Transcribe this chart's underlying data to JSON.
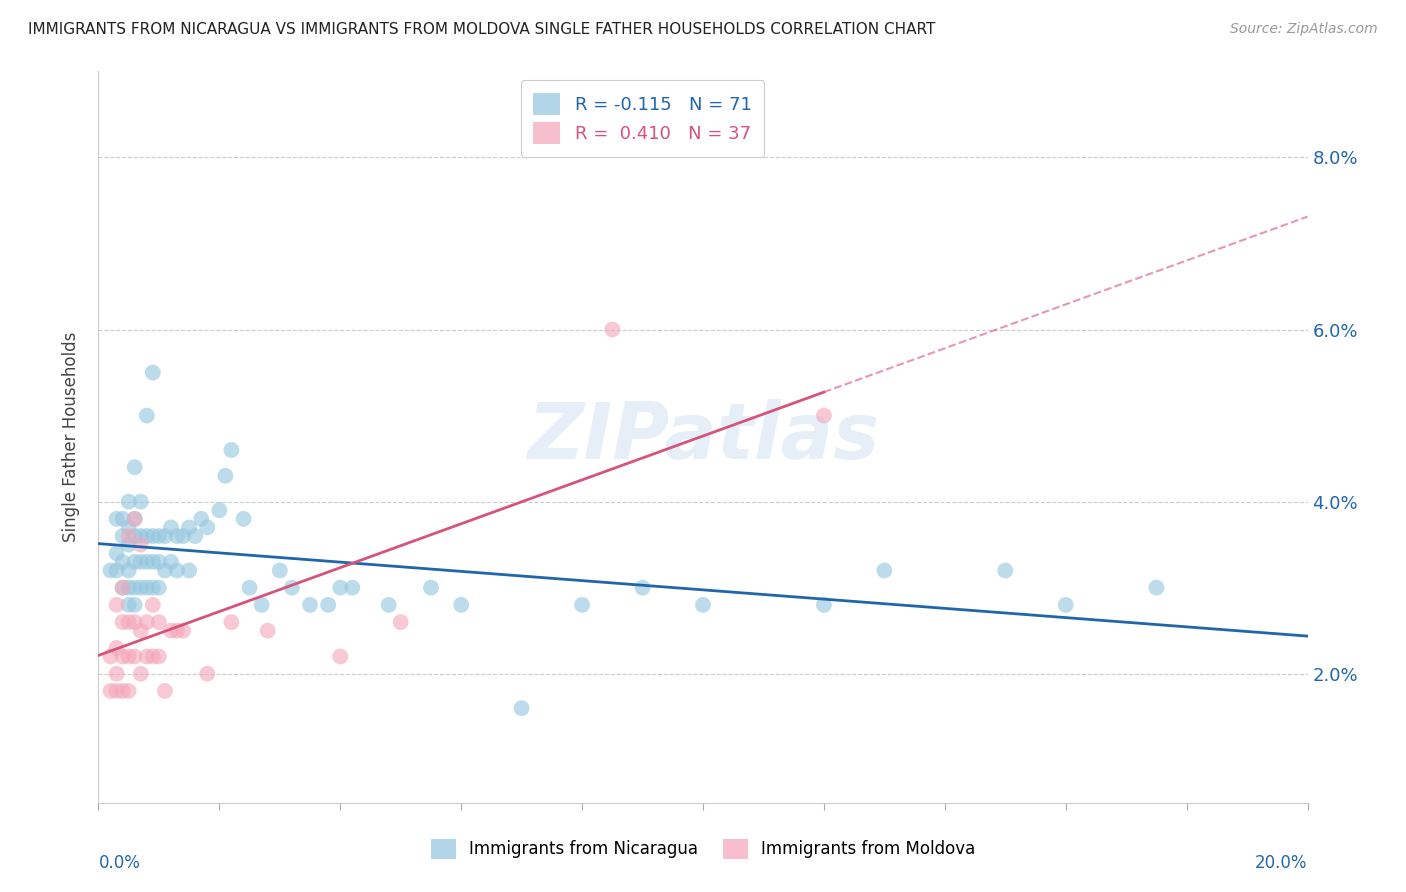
{
  "title": "IMMIGRANTS FROM NICARAGUA VS IMMIGRANTS FROM MOLDOVA SINGLE FATHER HOUSEHOLDS CORRELATION CHART",
  "source": "Source: ZipAtlas.com",
  "ylabel": "Single Father Households",
  "ytick_labels": [
    "2.0%",
    "4.0%",
    "6.0%",
    "8.0%"
  ],
  "ytick_values": [
    0.02,
    0.04,
    0.06,
    0.08
  ],
  "xlim": [
    0.0,
    0.2
  ],
  "ylim": [
    0.005,
    0.09
  ],
  "nicaragua_color": "#92c5de",
  "moldova_color": "#f4a5b8",
  "nicaragua_line_color": "#2166ac",
  "moldova_line_color": "#d6537a",
  "watermark": "ZIPatlas",
  "nicaragua_R": -0.115,
  "nicaragua_N": 71,
  "moldova_R": 0.41,
  "moldova_N": 37,
  "background_color": "#ffffff",
  "grid_color": "#cccccc",
  "nicaragua_x": [
    0.002,
    0.003,
    0.003,
    0.003,
    0.004,
    0.004,
    0.004,
    0.004,
    0.005,
    0.005,
    0.005,
    0.005,
    0.005,
    0.005,
    0.006,
    0.006,
    0.006,
    0.006,
    0.006,
    0.006,
    0.007,
    0.007,
    0.007,
    0.007,
    0.008,
    0.008,
    0.008,
    0.008,
    0.009,
    0.009,
    0.009,
    0.009,
    0.01,
    0.01,
    0.01,
    0.011,
    0.011,
    0.012,
    0.012,
    0.013,
    0.013,
    0.014,
    0.015,
    0.015,
    0.016,
    0.017,
    0.018,
    0.02,
    0.021,
    0.022,
    0.024,
    0.025,
    0.027,
    0.03,
    0.032,
    0.035,
    0.038,
    0.04,
    0.042,
    0.048,
    0.055,
    0.06,
    0.07,
    0.08,
    0.09,
    0.1,
    0.12,
    0.13,
    0.15,
    0.16,
    0.175
  ],
  "nicaragua_y": [
    0.032,
    0.032,
    0.034,
    0.038,
    0.03,
    0.033,
    0.036,
    0.038,
    0.028,
    0.03,
    0.032,
    0.035,
    0.037,
    0.04,
    0.028,
    0.03,
    0.033,
    0.036,
    0.038,
    0.044,
    0.03,
    0.033,
    0.036,
    0.04,
    0.03,
    0.033,
    0.036,
    0.05,
    0.03,
    0.033,
    0.036,
    0.055,
    0.03,
    0.033,
    0.036,
    0.032,
    0.036,
    0.033,
    0.037,
    0.032,
    0.036,
    0.036,
    0.032,
    0.037,
    0.036,
    0.038,
    0.037,
    0.039,
    0.043,
    0.046,
    0.038,
    0.03,
    0.028,
    0.032,
    0.03,
    0.028,
    0.028,
    0.03,
    0.03,
    0.028,
    0.03,
    0.028,
    0.016,
    0.028,
    0.03,
    0.028,
    0.028,
    0.032,
    0.032,
    0.028,
    0.03
  ],
  "moldova_x": [
    0.002,
    0.002,
    0.003,
    0.003,
    0.003,
    0.003,
    0.004,
    0.004,
    0.004,
    0.004,
    0.005,
    0.005,
    0.005,
    0.005,
    0.006,
    0.006,
    0.006,
    0.007,
    0.007,
    0.007,
    0.008,
    0.008,
    0.009,
    0.009,
    0.01,
    0.01,
    0.011,
    0.012,
    0.013,
    0.014,
    0.018,
    0.022,
    0.028,
    0.04,
    0.05,
    0.085,
    0.12
  ],
  "moldova_y": [
    0.018,
    0.022,
    0.018,
    0.02,
    0.023,
    0.028,
    0.018,
    0.022,
    0.026,
    0.03,
    0.018,
    0.022,
    0.026,
    0.036,
    0.022,
    0.026,
    0.038,
    0.02,
    0.025,
    0.035,
    0.022,
    0.026,
    0.022,
    0.028,
    0.022,
    0.026,
    0.018,
    0.025,
    0.025,
    0.025,
    0.02,
    0.026,
    0.025,
    0.022,
    0.026,
    0.06,
    0.05
  ]
}
